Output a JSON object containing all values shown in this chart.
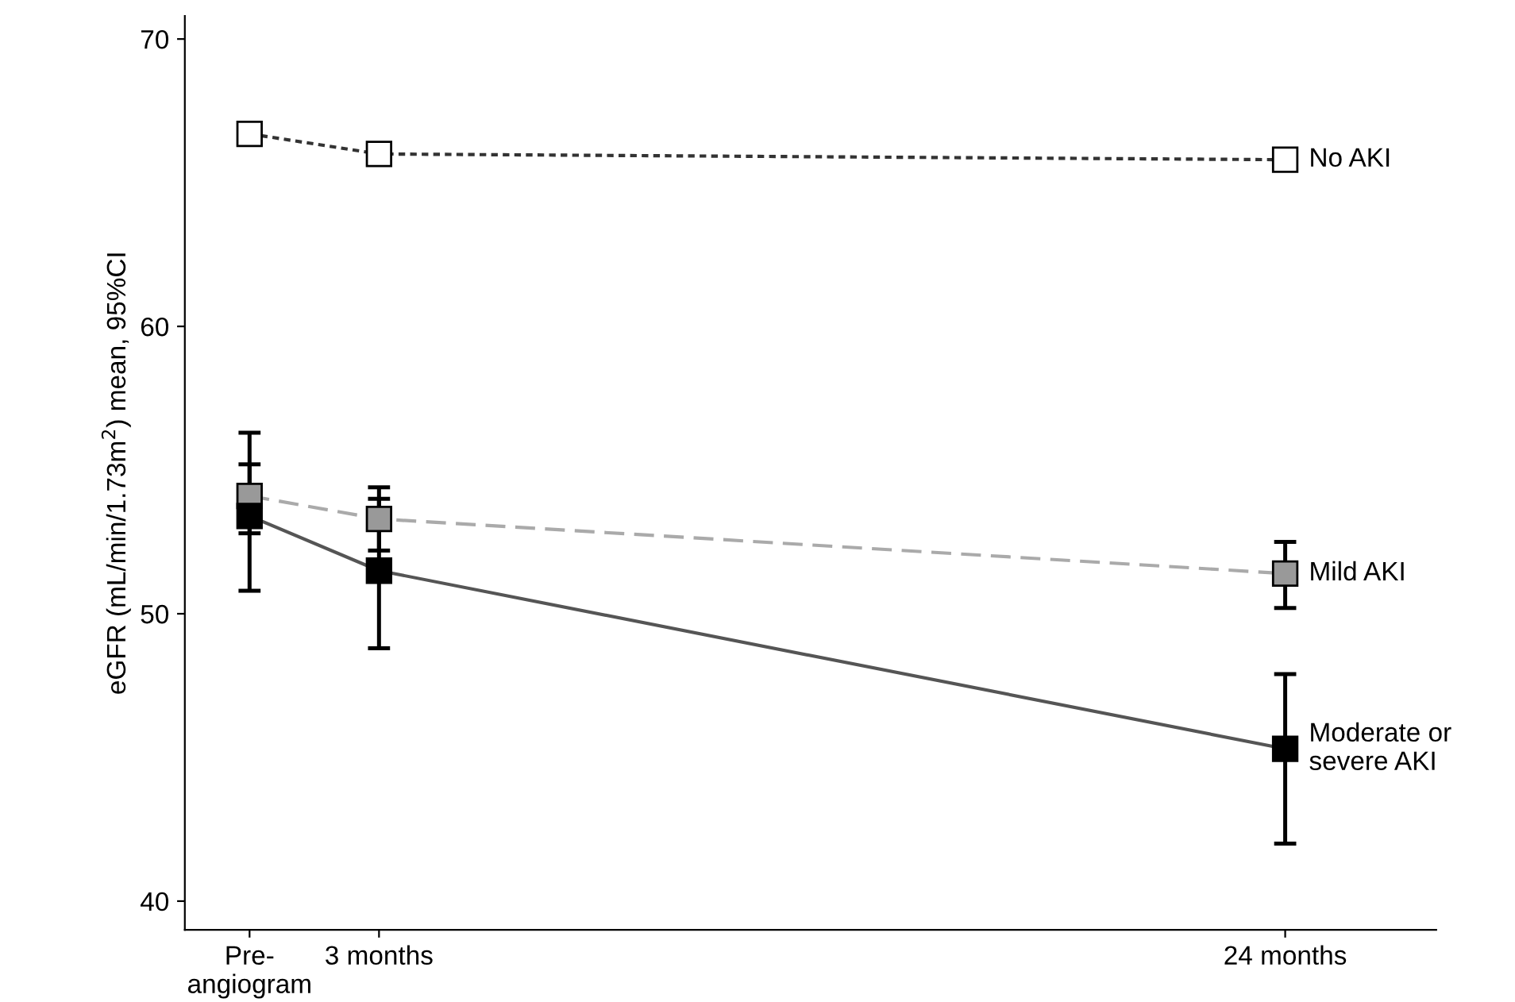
{
  "chart_data": {
    "type": "line",
    "ylabel": "eGFR (mL/min/1.73m$^{2}$) mean, 95%CI",
    "x": [
      0,
      3,
      24
    ],
    "xlim": [
      -1.5,
      27.5
    ],
    "xticks": [
      {
        "value": 0,
        "label": "Pre-\nangiogram"
      },
      {
        "value": 3,
        "label": "3 months"
      },
      {
        "value": 24,
        "label": "24 months"
      }
    ],
    "ylim": [
      39,
      70.8
    ],
    "yticks": [
      40,
      50,
      60,
      70
    ],
    "grid": false,
    "legend": false,
    "marker": "square",
    "series": [
      {
        "name": "No AKI",
        "color": "#ffffff",
        "line_style": "dotted",
        "values": [
          66.7,
          66.0,
          65.8
        ]
      },
      {
        "name": "Mild AKI",
        "color": "#999999",
        "line_style": "dashed",
        "values": [
          54.1,
          53.3,
          51.4
        ],
        "errors": [
          [
            52.8,
            55.2
          ],
          [
            52.2,
            54.4
          ],
          [
            50.2,
            52.5
          ]
        ]
      },
      {
        "name": "Moderate or\nsevere AKI",
        "color": "#000000",
        "line_style": "solid",
        "values": [
          53.4,
          51.5,
          45.3
        ],
        "errors": [
          [
            50.8,
            56.3
          ],
          [
            48.8,
            54.0
          ],
          [
            42.0,
            47.9
          ]
        ]
      }
    ]
  }
}
